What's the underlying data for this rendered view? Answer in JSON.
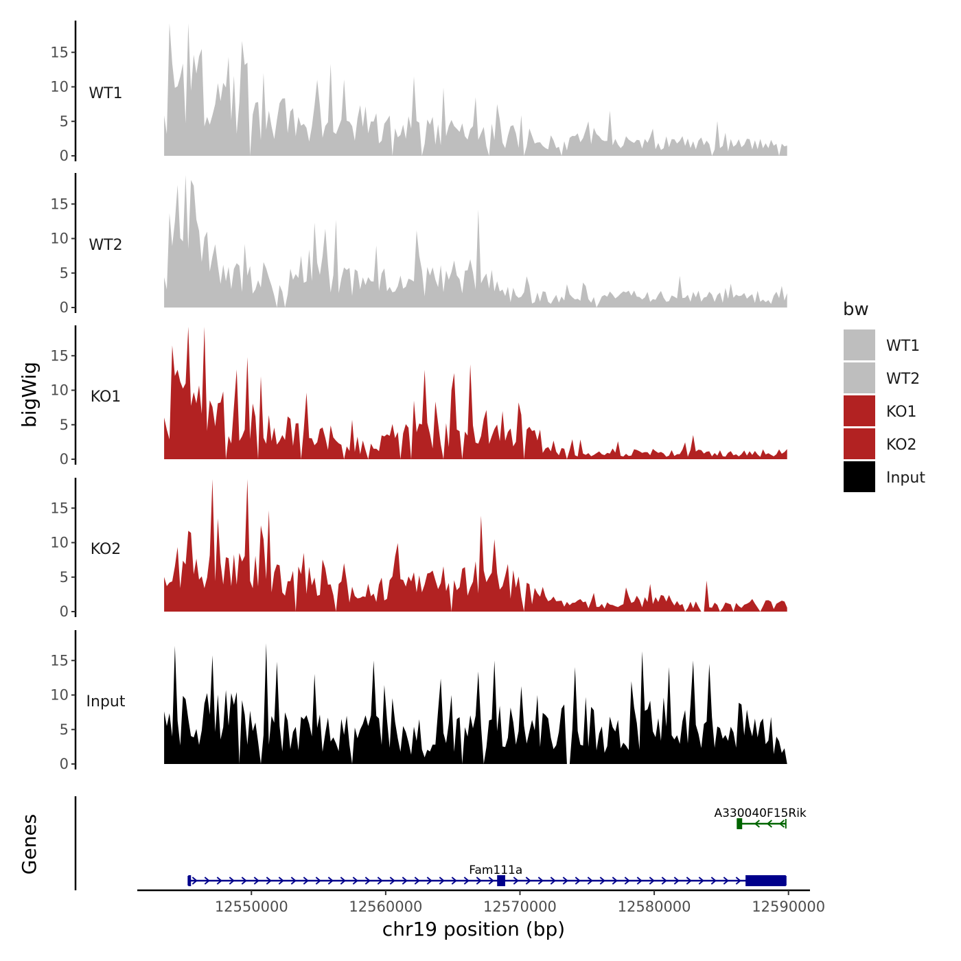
{
  "chart_data": {
    "type": "area",
    "chromosome": "chr19",
    "xlabel": "chr19 position (bp)",
    "ylabel": "bigWig",
    "gene_panel_label": "Genes",
    "xlim": [
      12541500,
      12591600
    ],
    "x_ticks": [
      12550000,
      12560000,
      12570000,
      12580000,
      12590000
    ],
    "x_tick_labels": [
      "12550000",
      "12560000",
      "12570000",
      "12580000",
      "12590000"
    ],
    "ylim": [
      0,
      19.5
    ],
    "y_ticks": [
      0,
      5,
      10,
      15
    ],
    "y_tick_labels": [
      "0",
      "5",
      "10",
      "15"
    ],
    "track_start": 12543500,
    "bin_size": 200,
    "legend": {
      "title": "bw",
      "entries": [
        {
          "label": "WT1",
          "color": "#bebebe"
        },
        {
          "label": "WT2",
          "color": "#bebebe"
        },
        {
          "label": "KO1",
          "color": "#b22222"
        },
        {
          "label": "KO2",
          "color": "#b22222"
        },
        {
          "label": "Input",
          "color": "#000000"
        }
      ]
    },
    "series": [
      {
        "name": "WT1",
        "color": "#bebebe",
        "shape": [
          [
            0,
            5
          ],
          [
            0.005,
            9
          ],
          [
            0.015,
            12.5
          ],
          [
            0.02,
            16
          ],
          [
            0.03,
            11
          ],
          [
            0.05,
            12
          ],
          [
            0.08,
            8
          ],
          [
            0.1,
            9
          ],
          [
            0.13,
            7
          ],
          [
            0.16,
            5.5
          ],
          [
            0.2,
            5
          ],
          [
            0.25,
            4.5
          ],
          [
            0.3,
            5
          ],
          [
            0.35,
            4
          ],
          [
            0.4,
            4
          ],
          [
            0.45,
            3.5
          ],
          [
            0.5,
            3
          ],
          [
            0.55,
            2.8
          ],
          [
            0.6,
            2.5
          ],
          [
            0.65,
            2
          ],
          [
            0.7,
            2
          ],
          [
            0.75,
            2.2
          ],
          [
            0.8,
            2
          ],
          [
            0.85,
            1.8
          ],
          [
            0.9,
            1.8
          ],
          [
            0.95,
            1.5
          ],
          [
            1,
            1.5
          ]
        ],
        "spikes": [
          [
            0.02,
            16
          ],
          [
            0.06,
            15.5
          ],
          [
            0.135,
            13.5
          ],
          [
            0.16,
            12
          ],
          [
            0.245,
            11
          ],
          [
            0.3,
            10
          ],
          [
            0.4,
            11.5
          ],
          [
            0.5,
            8.5
          ],
          [
            0.535,
            7.5
          ],
          [
            0.68,
            5
          ],
          [
            0.77,
            5
          ],
          [
            0.86,
            4
          ],
          [
            0.98,
            9
          ]
        ]
      },
      {
        "name": "WT2",
        "color": "#bebebe",
        "shape": [
          [
            0,
            3.5
          ],
          [
            0.015,
            8
          ],
          [
            0.03,
            10
          ],
          [
            0.045,
            8
          ],
          [
            0.07,
            7
          ],
          [
            0.1,
            5
          ],
          [
            0.15,
            4
          ],
          [
            0.2,
            4
          ],
          [
            0.25,
            4
          ],
          [
            0.3,
            4.5
          ],
          [
            0.35,
            4
          ],
          [
            0.4,
            4
          ],
          [
            0.45,
            4
          ],
          [
            0.5,
            4.5
          ],
          [
            0.53,
            4.5
          ],
          [
            0.55,
            2
          ],
          [
            0.6,
            1.5
          ],
          [
            0.7,
            1.5
          ],
          [
            0.8,
            1.5
          ],
          [
            0.9,
            1.5
          ],
          [
            1,
            1.5
          ]
        ],
        "spikes": [
          [
            0.018,
            12.5
          ],
          [
            0.043,
            18.5
          ],
          [
            0.07,
            11
          ],
          [
            0.11,
            12
          ],
          [
            0.22,
            7.5
          ],
          [
            0.34,
            9
          ],
          [
            0.41,
            7.5
          ],
          [
            0.49,
            7
          ],
          [
            0.52,
            7.5
          ],
          [
            0.92,
            5.5
          ],
          [
            0.998,
            6.5
          ]
        ]
      },
      {
        "name": "KO1",
        "color": "#b22222",
        "shape": [
          [
            0,
            4.5
          ],
          [
            0.01,
            8
          ],
          [
            0.03,
            10
          ],
          [
            0.06,
            8.5
          ],
          [
            0.08,
            6
          ],
          [
            0.1,
            6
          ],
          [
            0.13,
            5.5
          ],
          [
            0.15,
            5
          ],
          [
            0.2,
            4.5
          ],
          [
            0.25,
            3
          ],
          [
            0.3,
            2
          ],
          [
            0.34,
            2
          ],
          [
            0.36,
            3
          ],
          [
            0.4,
            4
          ],
          [
            0.45,
            4.5
          ],
          [
            0.5,
            4.5
          ],
          [
            0.55,
            5
          ],
          [
            0.58,
            5
          ],
          [
            0.6,
            3
          ],
          [
            0.62,
            1
          ],
          [
            0.7,
            1
          ],
          [
            0.8,
            0.9
          ],
          [
            0.9,
            0.8
          ],
          [
            1,
            1
          ]
        ],
        "spikes": [
          [
            0.013,
            16.5
          ],
          [
            0.035,
            11
          ],
          [
            0.115,
            13
          ],
          [
            0.155,
            12
          ],
          [
            0.23,
            13
          ],
          [
            0.355,
            8.5
          ],
          [
            0.4,
            8.5
          ],
          [
            0.46,
            10
          ],
          [
            0.55,
            11
          ],
          [
            0.67,
            3.5
          ],
          [
            0.85,
            3.5
          ]
        ]
      },
      {
        "name": "KO2",
        "color": "#b22222",
        "shape": [
          [
            0,
            3.5
          ],
          [
            0.02,
            6.5
          ],
          [
            0.05,
            7.5
          ],
          [
            0.08,
            7
          ],
          [
            0.1,
            6
          ],
          [
            0.15,
            7
          ],
          [
            0.2,
            6
          ],
          [
            0.25,
            5
          ],
          [
            0.3,
            3
          ],
          [
            0.33,
            2.5
          ],
          [
            0.36,
            3.5
          ],
          [
            0.4,
            4
          ],
          [
            0.45,
            4
          ],
          [
            0.5,
            4.5
          ],
          [
            0.55,
            4.5
          ],
          [
            0.6,
            2
          ],
          [
            0.65,
            1
          ],
          [
            0.7,
            1
          ],
          [
            0.75,
            1.5
          ],
          [
            0.8,
            1.5
          ],
          [
            0.85,
            1.3
          ],
          [
            0.9,
            1.2
          ],
          [
            1,
            1
          ]
        ],
        "spikes": [
          [
            0.085,
            13.5
          ],
          [
            0.155,
            12.5
          ],
          [
            0.27,
            10
          ],
          [
            0.37,
            8
          ],
          [
            0.425,
            8.5
          ],
          [
            0.53,
            10.5
          ],
          [
            0.78,
            4
          ],
          [
            0.87,
            4.5
          ]
        ]
      },
      {
        "name": "Input",
        "color": "#000000",
        "shape": [
          [
            0,
            5
          ],
          [
            0.05,
            7
          ],
          [
            0.1,
            7
          ],
          [
            0.15,
            7
          ],
          [
            0.17,
            6
          ],
          [
            0.2,
            4.5
          ],
          [
            0.3,
            4.5
          ],
          [
            0.33,
            4.5
          ],
          [
            0.38,
            4
          ],
          [
            0.4,
            3.5
          ],
          [
            0.42,
            2
          ],
          [
            0.44,
            4
          ],
          [
            0.5,
            5
          ],
          [
            0.55,
            6
          ],
          [
            0.6,
            6
          ],
          [
            0.65,
            6
          ],
          [
            0.68,
            6
          ],
          [
            0.7,
            4
          ],
          [
            0.73,
            5
          ],
          [
            0.8,
            6
          ],
          [
            0.85,
            6
          ],
          [
            0.9,
            6
          ],
          [
            0.95,
            5.5
          ],
          [
            1,
            3
          ]
        ],
        "spikes": [
          [
            0.163,
            17.5
          ],
          [
            0.335,
            15
          ],
          [
            0.53,
            15
          ],
          [
            0.85,
            15
          ],
          [
            0.875,
            14.5
          ],
          [
            0.75,
            12
          ],
          [
            0.46,
            10
          ],
          [
            0.6,
            10
          ]
        ]
      }
    ],
    "genes": [
      {
        "name": "Fam111a",
        "strand": "+",
        "color": "#00008b",
        "start": 12545300,
        "end": 12589800,
        "label_pos": 12568200,
        "row": 1,
        "exons": [
          [
            12545300,
            12545500
          ],
          [
            12568300,
            12568900
          ],
          [
            12586800,
            12589800
          ]
        ]
      },
      {
        "name": "A330040F15Rik",
        "strand": "-",
        "color": "#006400",
        "start": 12586200,
        "end": 12589800,
        "label_pos": 12587900,
        "row": 2,
        "exons": [
          [
            12586150,
            12586550
          ]
        ]
      }
    ]
  }
}
